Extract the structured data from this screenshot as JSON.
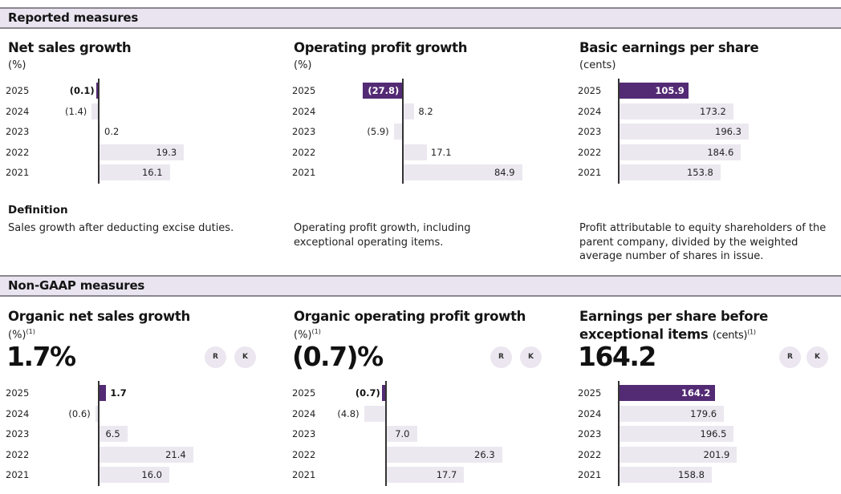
{
  "sections": {
    "reported": "Reported measures",
    "non_gaap": "Non-GAAP measures"
  },
  "definition_heading": "Definition",
  "badges": {
    "r": "R",
    "k": "K"
  },
  "colors": {
    "highlight": "#532a74",
    "bar": "#ece8f0",
    "band": "#e9e4f0"
  },
  "panels": [
    {
      "title": "Net sales growth",
      "unit": "(%)",
      "definition": "Sales growth after deducting excise duties."
    },
    {
      "title": "Operating profit growth",
      "unit": "(%)",
      "definition": "Operating profit growth, including exceptional operating items."
    },
    {
      "title": "Basic earnings per share",
      "unit": "(cents)",
      "definition": "Profit attributable to equity shareholders of the parent company, divided by the weighted average number of shares in issue."
    },
    {
      "title": "Organic net sales growth",
      "unit": "(%)",
      "footnote": "(1)",
      "headline": "1.7%"
    },
    {
      "title": "Organic operating profit growth",
      "unit": "(%)",
      "footnote": "(1)",
      "headline": "(0.7)%"
    },
    {
      "title_line1": "Earnings per share before",
      "title_line2": "exceptional items",
      "unit": "(cents)",
      "footnote": "(1)",
      "headline": "164.2"
    }
  ],
  "chart_data": [
    {
      "type": "bar",
      "orientation": "horizontal",
      "title": "Net sales growth",
      "ylabel": "(%)",
      "categories": [
        "2025",
        "2024",
        "2023",
        "2022",
        "2021"
      ],
      "values": [
        -0.1,
        -1.4,
        0.2,
        19.3,
        16.1
      ],
      "labels": [
        "(0.1)",
        "(1.4)",
        "0.2",
        "19.3",
        "16.1"
      ],
      "highlight_index": 0
    },
    {
      "type": "bar",
      "orientation": "horizontal",
      "title": "Operating profit growth",
      "ylabel": "(%)",
      "categories": [
        "2025",
        "2024",
        "2023",
        "2022",
        "2021"
      ],
      "values": [
        -27.8,
        8.2,
        -5.9,
        17.1,
        84.9
      ],
      "labels": [
        "(27.8)",
        "8.2",
        "(5.9)",
        "17.1",
        "84.9"
      ],
      "highlight_index": 0
    },
    {
      "type": "bar",
      "orientation": "horizontal",
      "title": "Basic earnings per share",
      "ylabel": "(cents)",
      "categories": [
        "2025",
        "2024",
        "2023",
        "2022",
        "2021"
      ],
      "values": [
        105.9,
        173.2,
        196.3,
        184.6,
        153.8
      ],
      "labels": [
        "105.9",
        "173.2",
        "196.3",
        "184.6",
        "153.8"
      ],
      "highlight_index": 0
    },
    {
      "type": "bar",
      "orientation": "horizontal",
      "title": "Organic net sales growth",
      "ylabel": "(%)",
      "categories": [
        "2025",
        "2024",
        "2023",
        "2022",
        "2021"
      ],
      "values": [
        1.7,
        -0.6,
        6.5,
        21.4,
        16.0
      ],
      "labels": [
        "1.7",
        "(0.6)",
        "6.5",
        "21.4",
        "16.0"
      ],
      "highlight_index": 0
    },
    {
      "type": "bar",
      "orientation": "horizontal",
      "title": "Organic operating profit growth",
      "ylabel": "(%)",
      "categories": [
        "2025",
        "2024",
        "2023",
        "2022",
        "2021"
      ],
      "values": [
        -0.7,
        -4.8,
        7.0,
        26.3,
        17.7
      ],
      "labels": [
        "(0.7)",
        "(4.8)",
        "7.0",
        "26.3",
        "17.7"
      ],
      "highlight_index": 0
    },
    {
      "type": "bar",
      "orientation": "horizontal",
      "title": "Earnings per share before exceptional items",
      "ylabel": "(cents)",
      "categories": [
        "2025",
        "2024",
        "2023",
        "2022",
        "2021"
      ],
      "values": [
        164.2,
        179.6,
        196.5,
        201.9,
        158.8
      ],
      "labels": [
        "164.2",
        "179.6",
        "196.5",
        "201.9",
        "158.8"
      ],
      "highlight_index": 0
    }
  ]
}
